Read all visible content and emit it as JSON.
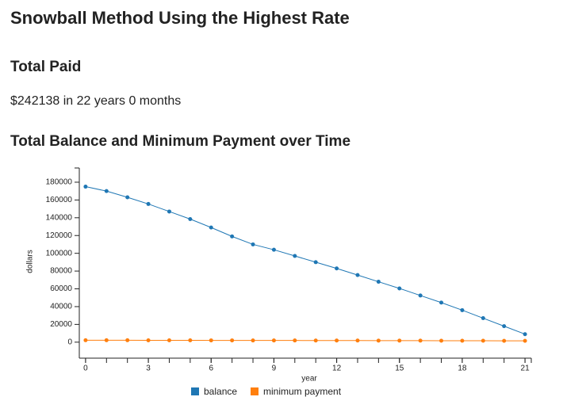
{
  "title": "Snowball Method Using the Highest Rate",
  "total_paid": {
    "heading": "Total Paid",
    "text": "$242138 in 22 years 0 months"
  },
  "chart_data": {
    "type": "line",
    "title": "Total Balance and Minimum Payment over Time",
    "x_label": "year",
    "y_label": "dollars",
    "x": [
      0,
      1,
      2,
      3,
      4,
      5,
      6,
      7,
      8,
      9,
      10,
      11,
      12,
      13,
      14,
      15,
      16,
      17,
      18,
      19,
      20,
      21
    ],
    "series": [
      {
        "name": "balance",
        "color": "#1f77b4",
        "values": [
          175000,
          170000,
          163000,
          155500,
          147000,
          138500,
          129000,
          119000,
          110000,
          104000,
          97000,
          90000,
          83000,
          75500,
          68000,
          60500,
          52500,
          44500,
          36000,
          27000,
          18000,
          9000
        ]
      },
      {
        "name": "minimum payment",
        "color": "#ff7f0e",
        "values": [
          2200,
          2200,
          2200,
          2100,
          2100,
          2100,
          2000,
          2000,
          1900,
          1900,
          1900,
          1800,
          1800,
          1800,
          1700,
          1700,
          1700,
          1600,
          1600,
          1600,
          1500,
          1500
        ]
      }
    ],
    "xlim": [
      -0.3,
      21.3
    ],
    "xticks": [
      0,
      3,
      6,
      9,
      12,
      15,
      18,
      21
    ],
    "ylim": [
      -18000,
      196000
    ],
    "yticks": [
      0,
      20000,
      40000,
      60000,
      80000,
      100000,
      120000,
      140000,
      160000,
      180000
    ],
    "legend": "bottom"
  }
}
